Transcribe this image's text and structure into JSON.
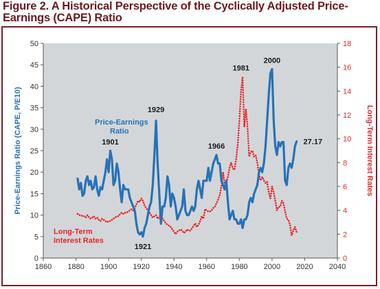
{
  "figure": {
    "title_line1": "Figure 2. A Historical Perspective of the Cyclically Adjusted Price-",
    "title_line2": "Earnings (CAPE) Ratio"
  },
  "chart_data": {
    "type": "line",
    "title": "Figure 2. A Historical Perspective of the Cyclically Adjusted Price-Earnings (CAPE) Ratio",
    "ylabel": "Price-Earnings Ratio (CAPE, P/E10)",
    "y2label": "Long-Term Interest Rates",
    "xlim": [
      1860,
      2040
    ],
    "ylim": [
      0,
      50
    ],
    "y2lim": [
      0,
      18
    ],
    "xticks": [
      1860,
      1880,
      1900,
      1920,
      1940,
      1960,
      1980,
      2000,
      2020,
      2040
    ],
    "yticks": [
      0,
      5,
      10,
      15,
      20,
      25,
      30,
      35,
      40,
      45,
      50
    ],
    "y2ticks": [
      0,
      2,
      4,
      6,
      8,
      10,
      12,
      14,
      16,
      18
    ],
    "grid": false,
    "colors": {
      "pe": "#2672b8",
      "rate": "#e8262a",
      "plot_bg": "#d3d6d9",
      "frame": "#7a1e26",
      "title": "#6a1a20"
    },
    "series": [
      {
        "name": "Price-Earnings Ratio",
        "label_lines": [
          "Price-Earnings",
          "Ratio"
        ],
        "axis": "left",
        "style": "solid",
        "x": [
          1881,
          1882,
          1883,
          1884,
          1885,
          1886,
          1887,
          1888,
          1889,
          1890,
          1891,
          1892,
          1893,
          1894,
          1895,
          1896,
          1897,
          1898,
          1899,
          1900,
          1901,
          1902,
          1903,
          1904,
          1905,
          1906,
          1907,
          1908,
          1909,
          1910,
          1911,
          1912,
          1913,
          1914,
          1915,
          1916,
          1917,
          1918,
          1919,
          1920,
          1921,
          1922,
          1923,
          1924,
          1925,
          1926,
          1927,
          1928,
          1929,
          1930,
          1931,
          1932,
          1933,
          1934,
          1935,
          1936,
          1937,
          1938,
          1939,
          1940,
          1941,
          1942,
          1943,
          1944,
          1945,
          1946,
          1947,
          1948,
          1949,
          1950,
          1951,
          1952,
          1953,
          1954,
          1955,
          1956,
          1957,
          1958,
          1959,
          1960,
          1961,
          1962,
          1963,
          1964,
          1965,
          1966,
          1967,
          1968,
          1969,
          1970,
          1971,
          1972,
          1973,
          1974,
          1975,
          1976,
          1977,
          1978,
          1979,
          1980,
          1981,
          1982,
          1983,
          1984,
          1985,
          1986,
          1987,
          1988,
          1989,
          1990,
          1991,
          1992,
          1993,
          1994,
          1995,
          1996,
          1997,
          1998,
          1999,
          2000,
          2001,
          2002,
          2003,
          2004,
          2005,
          2006,
          2007,
          2008,
          2009,
          2010,
          2011,
          2012,
          2013,
          2014,
          2015
        ],
        "values": [
          18.5,
          16,
          17.5,
          14.5,
          15,
          18,
          19,
          17,
          18,
          16,
          16.5,
          19,
          16,
          14.5,
          16.5,
          16,
          18,
          20,
          23,
          20,
          25,
          23,
          17,
          18,
          22,
          20,
          16,
          13,
          17,
          16,
          16,
          16,
          14,
          13,
          12,
          11,
          8,
          6,
          5.5,
          6,
          5,
          7,
          8,
          10,
          12,
          13,
          17,
          24,
          32,
          22,
          15,
          8,
          12,
          12,
          14,
          19,
          17,
          12,
          15,
          14,
          12,
          9,
          10,
          11,
          12,
          16,
          11,
          10,
          10,
          11,
          12,
          11,
          12,
          16,
          18,
          16,
          14,
          18,
          18,
          18,
          21,
          18,
          20,
          22,
          23,
          24,
          22,
          22,
          18,
          17,
          16,
          18,
          13,
          9,
          10,
          11,
          9,
          9,
          8,
          8,
          9,
          7,
          9,
          9,
          10,
          13,
          14,
          13,
          15,
          16,
          17,
          20,
          21,
          20,
          22,
          26,
          32,
          38,
          43,
          44,
          32,
          26,
          24,
          27,
          26,
          27,
          27,
          18,
          17,
          21,
          22,
          21,
          23,
          26,
          27.17
        ]
      },
      {
        "name": "Long-Term Interest Rates",
        "label_lines": [
          "Long-Term",
          "Interest Rates"
        ],
        "axis": "right",
        "style": "dotted",
        "x": [
          1881,
          1882,
          1883,
          1884,
          1885,
          1886,
          1887,
          1888,
          1889,
          1890,
          1891,
          1892,
          1893,
          1894,
          1895,
          1896,
          1897,
          1898,
          1899,
          1900,
          1901,
          1902,
          1903,
          1904,
          1905,
          1906,
          1907,
          1908,
          1909,
          1910,
          1911,
          1912,
          1913,
          1914,
          1915,
          1916,
          1917,
          1918,
          1919,
          1920,
          1921,
          1922,
          1923,
          1924,
          1925,
          1926,
          1927,
          1928,
          1929,
          1930,
          1931,
          1932,
          1933,
          1934,
          1935,
          1936,
          1937,
          1938,
          1939,
          1940,
          1941,
          1942,
          1943,
          1944,
          1945,
          1946,
          1947,
          1948,
          1949,
          1950,
          1951,
          1952,
          1953,
          1954,
          1955,
          1956,
          1957,
          1958,
          1959,
          1960,
          1961,
          1962,
          1963,
          1964,
          1965,
          1966,
          1967,
          1968,
          1969,
          1970,
          1971,
          1972,
          1973,
          1974,
          1975,
          1976,
          1977,
          1978,
          1979,
          1980,
          1981,
          1982,
          1983,
          1984,
          1985,
          1986,
          1987,
          1988,
          1989,
          1990,
          1991,
          1992,
          1993,
          1994,
          1995,
          1996,
          1997,
          1998,
          1999,
          2000,
          2001,
          2002,
          2003,
          2004,
          2005,
          2006,
          2007,
          2008,
          2009,
          2010,
          2011,
          2012,
          2013,
          2014,
          2015
        ],
        "values": [
          3.7,
          3.6,
          3.6,
          3.5,
          3.5,
          3.4,
          3.6,
          3.4,
          3.3,
          3.4,
          3.5,
          3.3,
          3.4,
          3.2,
          3.1,
          3.3,
          3.2,
          3.1,
          3.0,
          3.1,
          3.1,
          3.2,
          3.3,
          3.4,
          3.5,
          3.5,
          3.7,
          3.8,
          3.7,
          3.8,
          3.8,
          3.9,
          4.0,
          4.1,
          4.0,
          4.2,
          4.5,
          4.8,
          4.7,
          5.0,
          4.8,
          4.4,
          4.2,
          4.0,
          3.8,
          3.6,
          3.4,
          3.5,
          3.6,
          3.3,
          3.4,
          3.7,
          3.3,
          3.1,
          2.9,
          2.8,
          2.7,
          2.6,
          2.4,
          2.2,
          2.0,
          2.2,
          2.3,
          2.4,
          2.3,
          2.1,
          2.2,
          2.4,
          2.3,
          2.3,
          2.5,
          2.7,
          2.9,
          2.6,
          2.8,
          3.1,
          3.5,
          3.3,
          4.1,
          4.0,
          3.9,
          3.9,
          4.0,
          4.2,
          4.3,
          4.6,
          4.9,
          5.3,
          6.0,
          7.2,
          6.2,
          6.3,
          6.8,
          7.6,
          8.0,
          7.5,
          7.4,
          8.3,
          9.5,
          11.5,
          13.9,
          15.2,
          11.0,
          12.5,
          11.0,
          8.5,
          8.9,
          9.0,
          8.5,
          8.6,
          8.0,
          7.0,
          6.5,
          6.8,
          6.5,
          6.3,
          6.4,
          5.5,
          5.0,
          6.0,
          5.5,
          4.8,
          4.0,
          4.3,
          4.3,
          4.8,
          4.6,
          3.9,
          3.3,
          3.2,
          2.8,
          1.9,
          2.3,
          2.6,
          2.2
        ]
      }
    ],
    "annotations": [
      {
        "text": "1901",
        "x": 1901,
        "y": 25,
        "axis": "left",
        "pos": "above"
      },
      {
        "text": "1921",
        "x": 1921,
        "y": 5,
        "axis": "left",
        "pos": "below"
      },
      {
        "text": "1929",
        "x": 1929,
        "y": 32.5,
        "axis": "left",
        "pos": "above"
      },
      {
        "text": "1966",
        "x": 1966,
        "y": 24,
        "axis": "left",
        "pos": "above"
      },
      {
        "text": "1981",
        "x": 1981,
        "y": 15.2,
        "axis": "right",
        "pos": "above"
      },
      {
        "text": "2000",
        "x": 2000,
        "y": 44,
        "axis": "left",
        "pos": "above"
      },
      {
        "text": "27.17",
        "x": 2015,
        "y": 27.17,
        "axis": "left",
        "pos": "right"
      }
    ]
  }
}
